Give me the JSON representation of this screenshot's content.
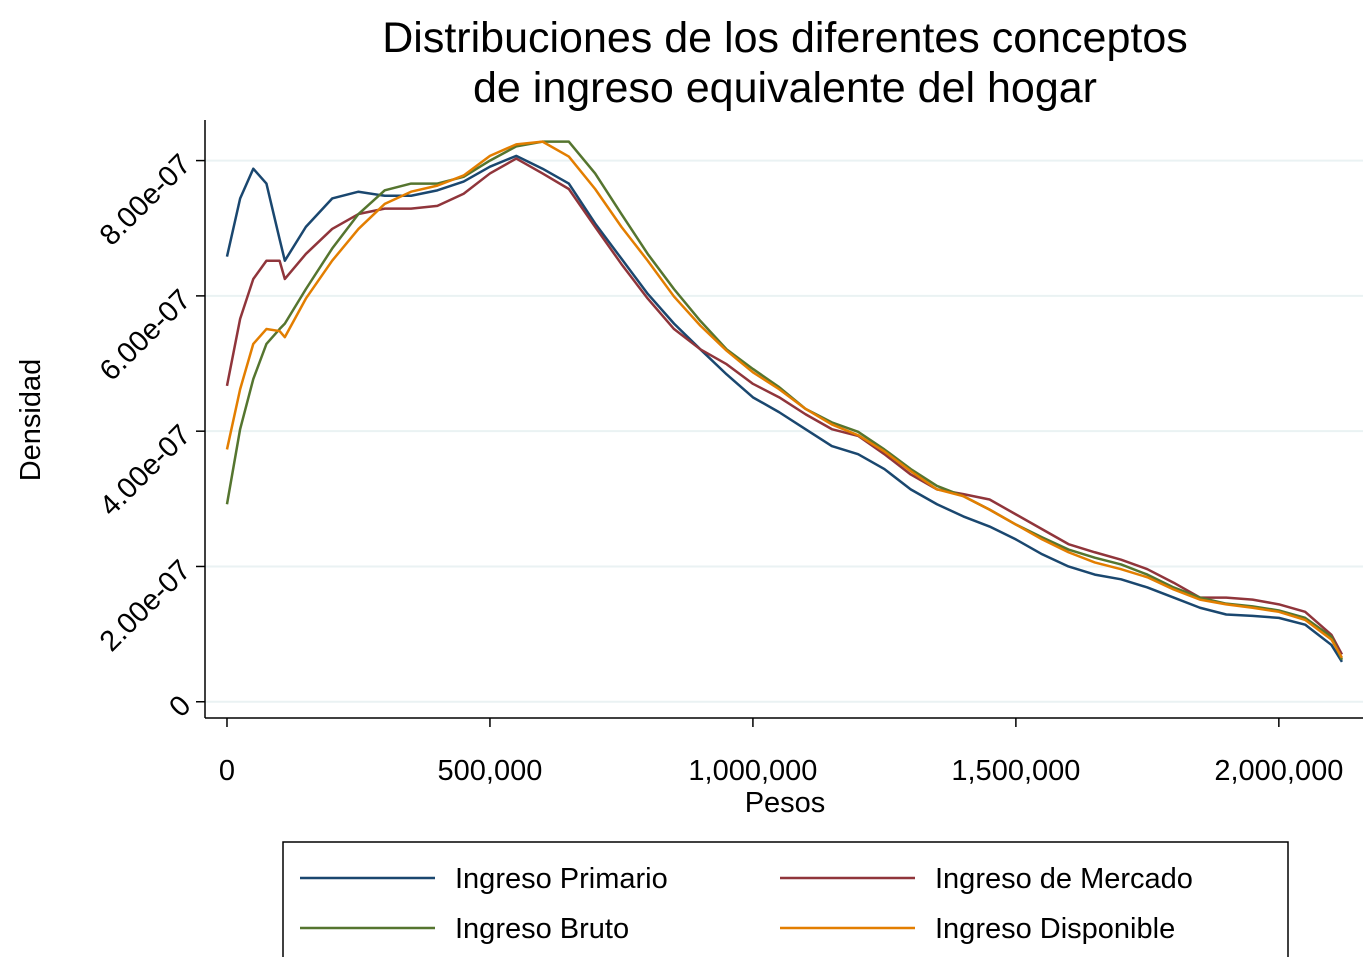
{
  "chart_data": {
    "type": "line",
    "title": [
      "Distribuciones de los diferentes conceptos",
      "de ingreso equivalente del hogar"
    ],
    "x_label": "Pesos",
    "y_label": "Densidad",
    "x": [
      0,
      25000,
      50000,
      75000,
      100000,
      110000,
      150000,
      200000,
      250000,
      300000,
      350000,
      400000,
      450000,
      500000,
      550000,
      600000,
      650000,
      700000,
      750000,
      800000,
      850000,
      900000,
      950000,
      1000000,
      1050000,
      1100000,
      1150000,
      1200000,
      1250000,
      1300000,
      1350000,
      1400000,
      1450000,
      1500000,
      1550000,
      1600000,
      1650000,
      1700000,
      1750000,
      1800000,
      1850000,
      1900000,
      1950000,
      2000000,
      2050000,
      2100000,
      2120000
    ],
    "series": [
      {
        "name": "Ingreso Primario",
        "color": "#1a476f",
        "values": [
          6.58e-07,
          7.44e-07,
          7.88e-07,
          7.66e-07,
          6.84e-07,
          6.52e-07,
          7.02e-07,
          7.44e-07,
          7.54e-07,
          7.48e-07,
          7.48e-07,
          7.56e-07,
          7.69e-07,
          7.91e-07,
          8.07e-07,
          7.88e-07,
          7.66e-07,
          7.07e-07,
          6.55e-07,
          6.03e-07,
          5.59e-07,
          5.21e-07,
          4.84e-07,
          4.5e-07,
          4.28e-07,
          4.03e-07,
          3.78e-07,
          3.66e-07,
          3.44e-07,
          3.14e-07,
          2.92e-07,
          2.74e-07,
          2.59e-07,
          2.4e-07,
          2.18e-07,
          2e-07,
          1.88e-07,
          1.81e-07,
          1.69e-07,
          1.54e-07,
          1.39e-07,
          1.29e-07,
          1.27e-07,
          1.24e-07,
          1.14e-07,
          8.4e-08,
          5.9e-08
        ]
      },
      {
        "name": "Ingreso de Mercado",
        "color": "#90353b",
        "values": [
          4.67e-07,
          5.66e-07,
          6.25e-07,
          6.52e-07,
          6.52e-07,
          6.25e-07,
          6.62e-07,
          6.99e-07,
          7.21e-07,
          7.29e-07,
          7.29e-07,
          7.33e-07,
          7.51e-07,
          7.81e-07,
          8.03e-07,
          7.81e-07,
          7.58e-07,
          7.02e-07,
          6.47e-07,
          5.96e-07,
          5.51e-07,
          5.21e-07,
          4.99e-07,
          4.7e-07,
          4.5e-07,
          4.25e-07,
          4.03e-07,
          3.93e-07,
          3.66e-07,
          3.36e-07,
          3.14e-07,
          3.07e-07,
          2.99e-07,
          2.77e-07,
          2.55e-07,
          2.33e-07,
          2.21e-07,
          2.1e-07,
          1.96e-07,
          1.76e-07,
          1.54e-07,
          1.54e-07,
          1.51e-07,
          1.44e-07,
          1.33e-07,
          9.9e-08,
          7e-08
        ]
      },
      {
        "name": "Ingreso Bruto",
        "color": "#55752f",
        "values": [
          2.92e-07,
          4.03e-07,
          4.77e-07,
          5.29e-07,
          5.51e-07,
          5.59e-07,
          6.1e-07,
          6.7e-07,
          7.21e-07,
          7.56e-07,
          7.66e-07,
          7.66e-07,
          7.76e-07,
          8e-07,
          8.21e-07,
          8.28e-07,
          8.28e-07,
          7.81e-07,
          7.21e-07,
          6.62e-07,
          6.1e-07,
          5.63e-07,
          5.21e-07,
          4.92e-07,
          4.65e-07,
          4.33e-07,
          4.13e-07,
          3.99e-07,
          3.73e-07,
          3.44e-07,
          3.19e-07,
          3.04e-07,
          2.84e-07,
          2.62e-07,
          2.43e-07,
          2.25e-07,
          2.13e-07,
          2.03e-07,
          1.88e-07,
          1.69e-07,
          1.54e-07,
          1.45e-07,
          1.41e-07,
          1.35e-07,
          1.24e-07,
          9.6e-08,
          6.2e-08
        ]
      },
      {
        "name": "Ingreso Disponible",
        "color": "#e37e00",
        "values": [
          3.73e-07,
          4.62e-07,
          5.29e-07,
          5.51e-07,
          5.48e-07,
          5.39e-07,
          5.96e-07,
          6.52e-07,
          6.99e-07,
          7.36e-07,
          7.54e-07,
          7.63e-07,
          7.78e-07,
          8.07e-07,
          8.24e-07,
          8.28e-07,
          8.06e-07,
          7.58e-07,
          7.02e-07,
          6.52e-07,
          5.99e-07,
          5.56e-07,
          5.19e-07,
          4.87e-07,
          4.62e-07,
          4.33e-07,
          4.1e-07,
          3.94e-07,
          3.7e-07,
          3.41e-07,
          3.14e-07,
          3.04e-07,
          2.84e-07,
          2.62e-07,
          2.4e-07,
          2.21e-07,
          2.06e-07,
          1.96e-07,
          1.84e-07,
          1.66e-07,
          1.51e-07,
          1.44e-07,
          1.39e-07,
          1.33e-07,
          1.21e-07,
          9.2e-08,
          6.5e-08
        ]
      }
    ],
    "xlim": [
      -41800,
      2160000
    ],
    "ylim": [
      -2.4e-08,
      8.6e-07
    ],
    "xticks": [
      0,
      {
        "value": 500000,
        "label": "500,000"
      },
      {
        "value": 1000000,
        "label": "1,000,000"
      },
      {
        "value": 1500000,
        "label": "1,500,000"
      },
      {
        "value": 2000000,
        "label": "2,000,000"
      }
    ],
    "yticks": [
      0,
      {
        "value": 2e-07,
        "label": "2.00e-07"
      },
      {
        "value": 4e-07,
        "label": "4.00e-07"
      },
      {
        "value": 6e-07,
        "label": "6.00e-07"
      },
      {
        "value": 8e-07,
        "label": "8.00e-07"
      }
    ],
    "grid": true,
    "legend": "bottom"
  }
}
